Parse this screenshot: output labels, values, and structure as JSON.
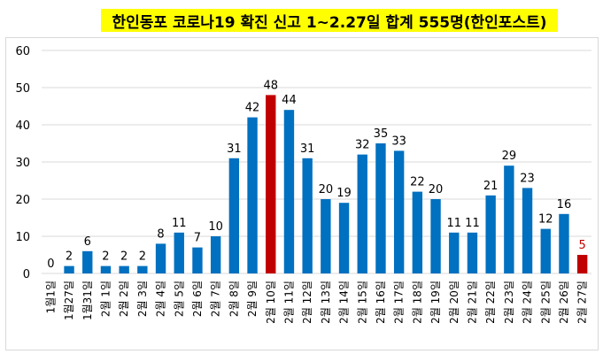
{
  "chart_data": {
    "type": "bar",
    "title": "한인동포 코로나19 확진 신고 1~2.27일 합계 555명(한인포스트)",
    "categories": [
      "1월1일",
      "1월27일",
      "1월31일",
      "2월 1일",
      "2월 2일",
      "2월 3일",
      "2월 4일",
      "2월 5일",
      "2월 6일",
      "2월 7일",
      "2월 8일",
      "2월 9일",
      "2월 10일",
      "2월 11일",
      "2월 12일",
      "2월 13일",
      "2월 14일",
      "2월 15일",
      "2월 16일",
      "2월 17일",
      "2월 18일",
      "2월 19일",
      "2월 20일",
      "2월 21일",
      "2월 22일",
      "2월 23일",
      "2월 24일",
      "2월 25일",
      "2월 26일",
      "2월 27일"
    ],
    "values": [
      0,
      2,
      6,
      2,
      2,
      2,
      8,
      11,
      7,
      10,
      31,
      42,
      48,
      44,
      31,
      20,
      19,
      32,
      35,
      33,
      22,
      20,
      11,
      11,
      21,
      29,
      23,
      12,
      16,
      5
    ],
    "ylim": [
      0,
      60
    ],
    "yticks": [
      0,
      10,
      20,
      30,
      40,
      50,
      60
    ],
    "grid": true,
    "colors": {
      "default": "#0070c0",
      "highlight": "#c00000",
      "title_bg": "#ffff00"
    },
    "highlight_indices": [
      12,
      29
    ]
  }
}
